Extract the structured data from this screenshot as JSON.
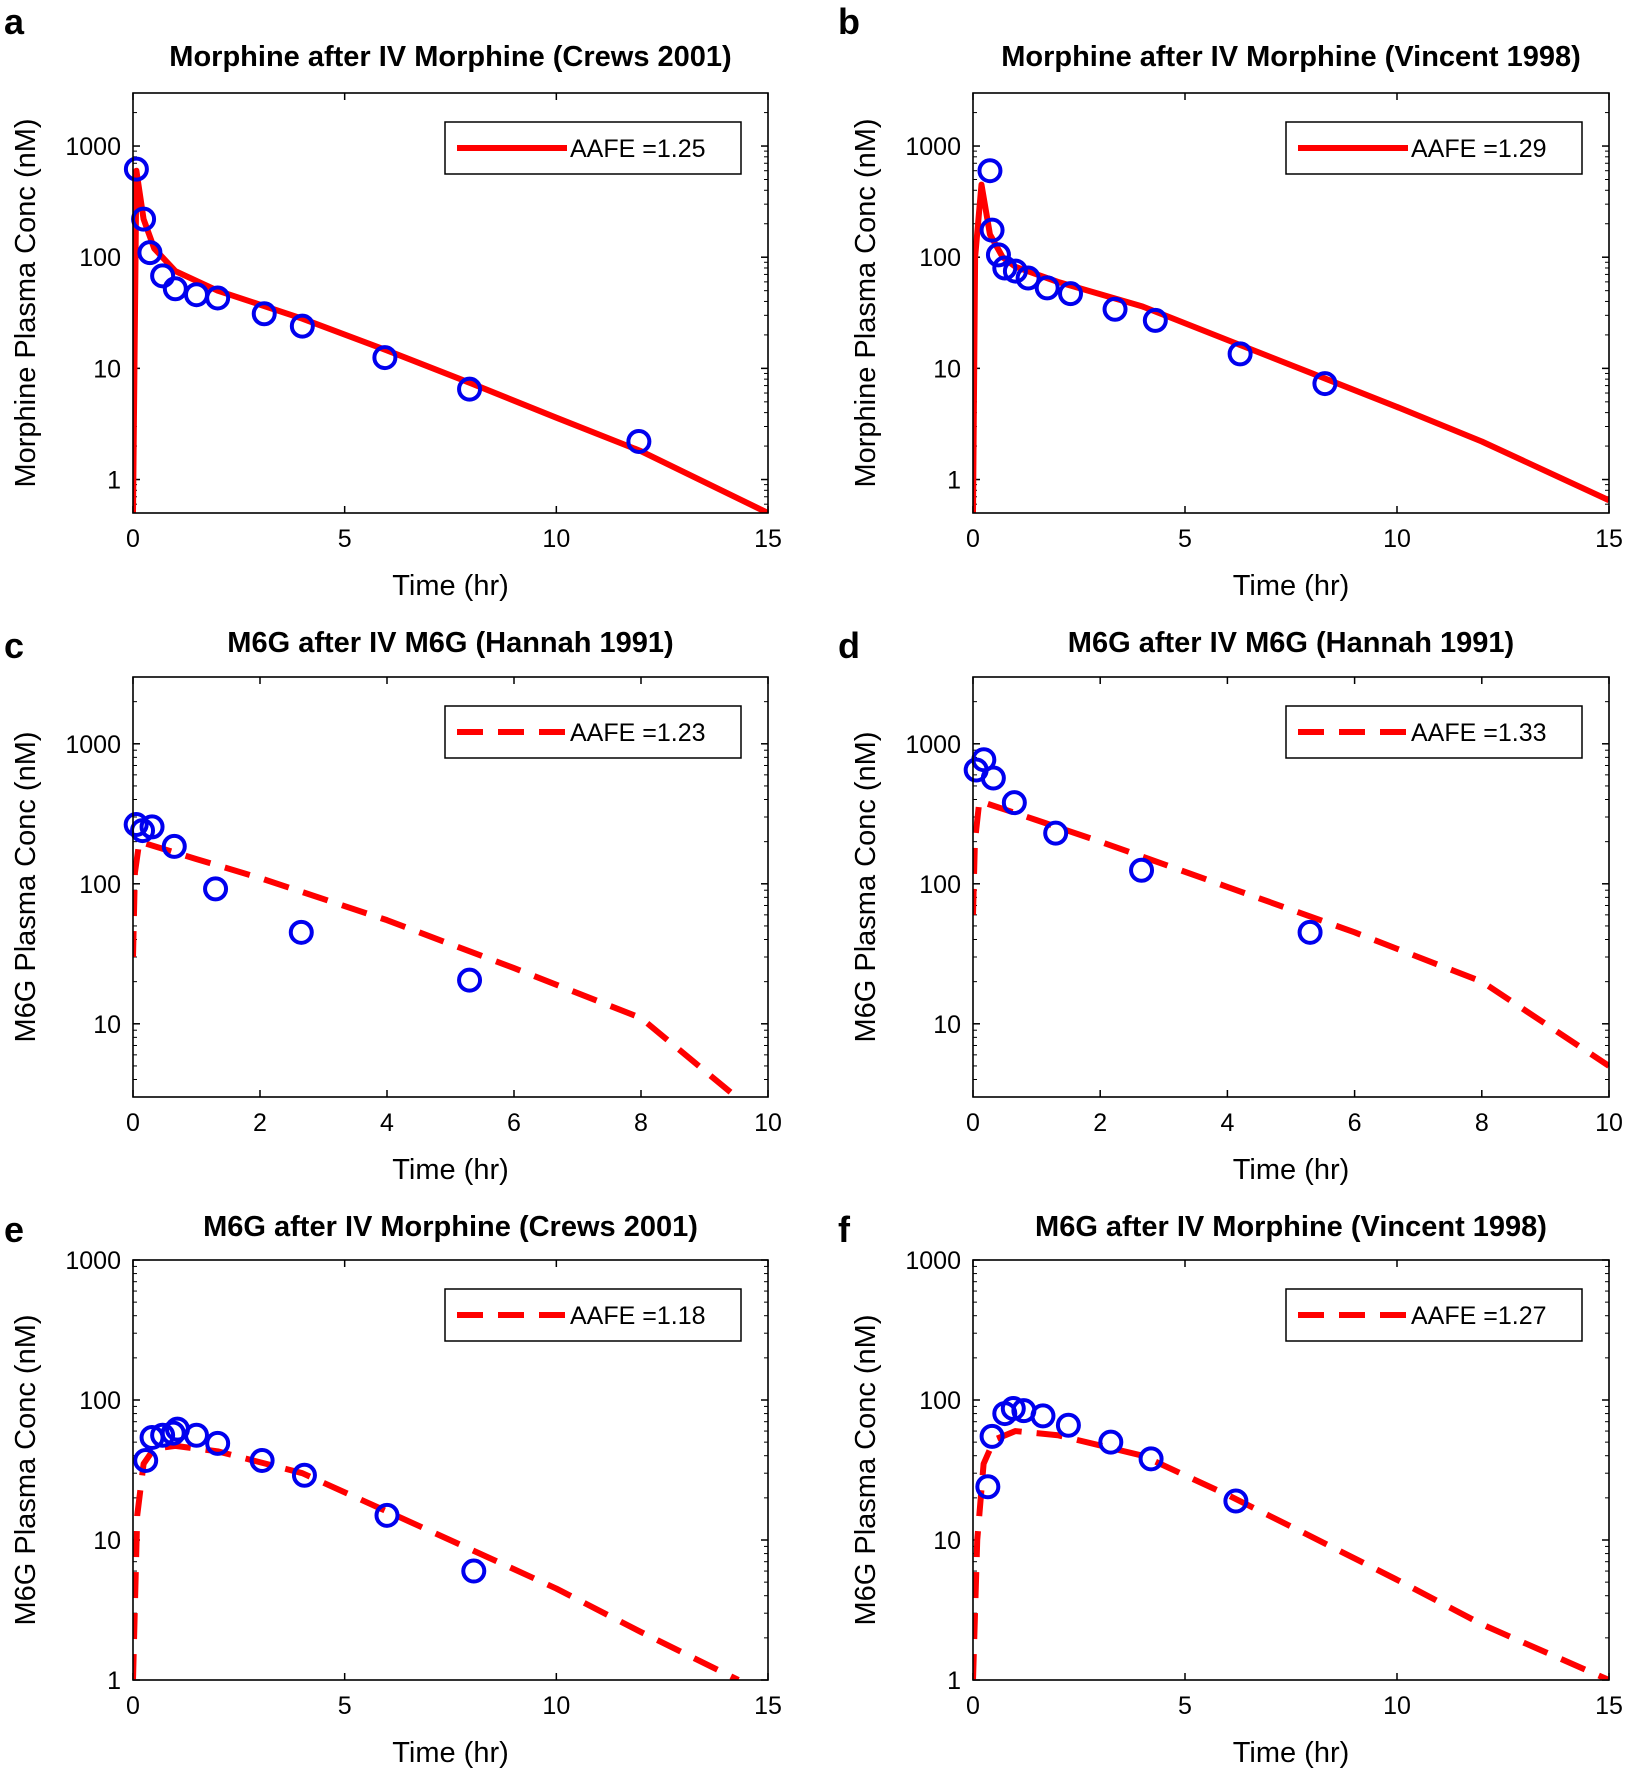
{
  "chart_data": [
    {
      "type": "line",
      "panel": "a",
      "title": "Morphine after IV Morphine (Crews 2001)",
      "xlabel": "Time (hr)",
      "ylabel": "Morphine Plasma Conc (nM)",
      "yscale": "log",
      "xlim": [
        0,
        15
      ],
      "ylim": [
        0.5,
        3000
      ],
      "xticks": [
        0,
        5,
        10,
        15
      ],
      "yticks": [
        1,
        10,
        100,
        1000
      ],
      "legend": {
        "label": "AAFE =1.25",
        "style": "solid",
        "location": "top-right"
      },
      "colors": {
        "model": "#ff0000",
        "observed": "#0000ee"
      },
      "model_series": {
        "name": "Model",
        "linestyle": "solid",
        "x": [
          0,
          0.08,
          0.25,
          0.5,
          1,
          2,
          4,
          6,
          8,
          10,
          12,
          15
        ],
        "y": [
          0.5,
          600,
          220,
          120,
          75,
          50,
          28,
          14.5,
          7.3,
          3.6,
          1.8,
          0.5
        ]
      },
      "observed_series": {
        "name": "Observed",
        "x": [
          0.08,
          0.25,
          0.4,
          0.7,
          1.0,
          1.5,
          2.0,
          3.1,
          4.0,
          5.95,
          7.95,
          11.95
        ],
        "y": [
          620,
          220,
          110,
          68,
          52,
          46,
          43,
          31,
          24,
          12.5,
          6.5,
          2.2
        ]
      }
    },
    {
      "type": "line",
      "panel": "b",
      "title": "Morphine after IV Morphine (Vincent 1998)",
      "xlabel": "Time (hr)",
      "ylabel": "Morphine Plasma Conc (nM)",
      "yscale": "log",
      "xlim": [
        0,
        15
      ],
      "ylim": [
        0.5,
        3000
      ],
      "xticks": [
        0,
        5,
        10,
        15
      ],
      "yticks": [
        1,
        10,
        100,
        1000
      ],
      "legend": {
        "label": "AAFE =1.29",
        "style": "solid",
        "location": "top-right"
      },
      "colors": {
        "model": "#ff0000",
        "observed": "#0000ee"
      },
      "model_series": {
        "name": "Model",
        "linestyle": "solid",
        "x": [
          0,
          0.05,
          0.2,
          0.4,
          0.7,
          1,
          2,
          4,
          6,
          8,
          10,
          12,
          15
        ],
        "y": [
          0.5,
          100,
          450,
          160,
          100,
          82,
          60,
          36,
          18,
          9,
          4.5,
          2.2,
          0.65
        ]
      },
      "observed_series": {
        "name": "Observed",
        "x": [
          0.4,
          0.45,
          0.6,
          0.75,
          1.0,
          1.3,
          1.75,
          2.3,
          3.35,
          4.3,
          6.3,
          8.3
        ],
        "y": [
          600,
          175,
          105,
          80,
          75,
          65,
          53,
          47,
          34,
          27,
          13.5,
          7.3
        ]
      }
    },
    {
      "type": "line",
      "panel": "c",
      "title": "M6G after IV M6G (Hannah 1991)",
      "xlabel": "Time (hr)",
      "ylabel": "M6G Plasma Conc (nM)",
      "yscale": "log",
      "xlim": [
        0,
        10
      ],
      "ylim": [
        3,
        3000
      ],
      "xticks": [
        0,
        2,
        4,
        6,
        8,
        10
      ],
      "yticks": [
        10,
        100,
        1000
      ],
      "legend": {
        "label": "AAFE =1.23",
        "style": "dashed",
        "location": "top-right"
      },
      "colors": {
        "model": "#ff0000",
        "observed": "#0000ee"
      },
      "model_series": {
        "name": "Model",
        "linestyle": "dashed",
        "x": [
          0,
          0.03,
          0.1,
          1,
          2,
          4,
          6,
          8,
          9.5
        ],
        "y": [
          30,
          120,
          200,
          150,
          110,
          55,
          25,
          11,
          3
        ]
      },
      "observed_series": {
        "name": "Observed",
        "x": [
          0.05,
          0.15,
          0.3,
          0.65,
          1.3,
          2.65,
          5.3
        ],
        "y": [
          265,
          240,
          255,
          185,
          92,
          45,
          20.5
        ]
      }
    },
    {
      "type": "line",
      "panel": "d",
      "title": "M6G after IV M6G (Hannah 1991)",
      "xlabel": "Time (hr)",
      "ylabel": "M6G Plasma Conc (nM)",
      "yscale": "log",
      "xlim": [
        0,
        10
      ],
      "ylim": [
        3,
        3000
      ],
      "xticks": [
        0,
        2,
        4,
        6,
        8,
        10
      ],
      "yticks": [
        10,
        100,
        1000
      ],
      "legend": {
        "label": "AAFE =1.33",
        "style": "dashed",
        "location": "top-right"
      },
      "colors": {
        "model": "#ff0000",
        "observed": "#0000ee"
      },
      "model_series": {
        "name": "Model",
        "linestyle": "dashed",
        "x": [
          0,
          0.03,
          0.1,
          1,
          2,
          4,
          6,
          8,
          10
        ],
        "y": [
          60,
          200,
          390,
          285,
          200,
          95,
          45,
          20,
          5
        ]
      },
      "observed_series": {
        "name": "Observed",
        "x": [
          0.05,
          0.17,
          0.32,
          0.65,
          1.3,
          2.65,
          5.3
        ],
        "y": [
          650,
          770,
          570,
          380,
          230,
          125,
          45
        ]
      }
    },
    {
      "type": "line",
      "panel": "e",
      "title": "M6G after IV Morphine (Crews 2001)",
      "xlabel": "Time (hr)",
      "ylabel": "M6G Plasma Conc (nM)",
      "yscale": "log",
      "xlim": [
        0,
        15
      ],
      "ylim": [
        1,
        1000
      ],
      "xticks": [
        0,
        5,
        10,
        15
      ],
      "yticks": [
        1,
        10,
        100,
        1000
      ],
      "legend": {
        "label": "AAFE =1.18",
        "style": "dashed",
        "location": "top-right"
      },
      "colors": {
        "model": "#ff0000",
        "observed": "#0000ee"
      },
      "model_series": {
        "name": "Model",
        "linestyle": "dashed",
        "x": [
          0,
          0.1,
          0.25,
          0.5,
          1,
          2,
          4,
          6,
          8,
          10,
          12,
          14.3
        ],
        "y": [
          1,
          15,
          35,
          45,
          47,
          43,
          30,
          16,
          8.5,
          4.5,
          2.2,
          1
        ]
      },
      "observed_series": {
        "name": "Observed",
        "x": [
          0.3,
          0.45,
          0.7,
          0.95,
          1.05,
          1.5,
          2.0,
          3.05,
          4.05,
          6.0,
          8.05
        ],
        "y": [
          37,
          54,
          56,
          58,
          62,
          56,
          49,
          37,
          29,
          15,
          6
        ]
      }
    },
    {
      "type": "line",
      "panel": "f",
      "title": "M6G after IV Morphine (Vincent 1998)",
      "xlabel": "Time (hr)",
      "ylabel": "M6G Plasma Conc (nM)",
      "yscale": "log",
      "xlim": [
        0,
        15
      ],
      "ylim": [
        1,
        1000
      ],
      "xticks": [
        0,
        5,
        10,
        15
      ],
      "yticks": [
        1,
        10,
        100,
        1000
      ],
      "legend": {
        "label": "AAFE =1.27",
        "style": "dashed",
        "location": "top-right"
      },
      "colors": {
        "model": "#ff0000",
        "observed": "#0000ee"
      },
      "model_series": {
        "name": "Model",
        "linestyle": "dashed",
        "x": [
          0,
          0.1,
          0.25,
          0.5,
          1,
          2,
          4,
          6,
          8,
          10,
          12,
          15
        ],
        "y": [
          1,
          10,
          35,
          52,
          60,
          56,
          40,
          21,
          10.5,
          5.2,
          2.5,
          1
        ]
      },
      "observed_series": {
        "name": "Observed",
        "x": [
          0.35,
          0.45,
          0.75,
          0.95,
          1.2,
          1.65,
          2.25,
          3.25,
          4.2,
          6.2
        ],
        "y": [
          24,
          55,
          80,
          87,
          84,
          77,
          66,
          50,
          38,
          19
        ]
      }
    }
  ]
}
